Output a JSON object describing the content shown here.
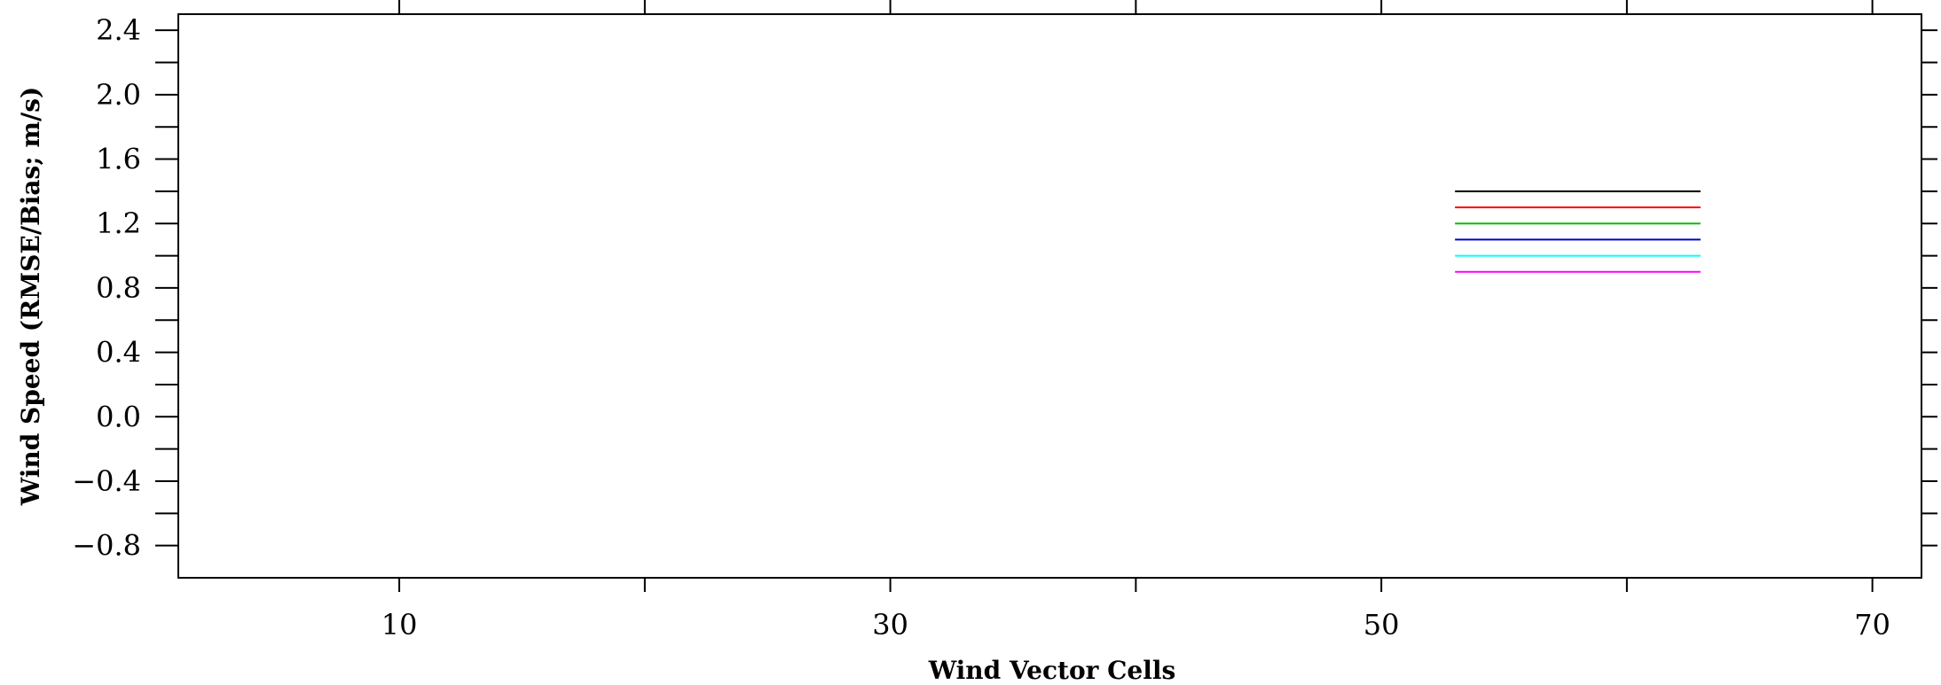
{
  "chart_data": {
    "type": "line",
    "title": "",
    "xlabel": "Wind Vector Cells",
    "ylabel": "Wind Speed (RMSE/Bias; m/s)",
    "xlim": [
      1,
      72
    ],
    "ylim": [
      -1.0,
      2.5
    ],
    "x_major_ticks": [
      10,
      30,
      50,
      70
    ],
    "x_minor_ticks": [
      20,
      40,
      60
    ],
    "x_tick_labels": [
      "10",
      "30",
      "50",
      "70"
    ],
    "y_major_ticks": [
      -0.8,
      -0.4,
      0.0,
      0.4,
      0.8,
      1.2,
      1.6,
      2.0,
      2.4
    ],
    "y_minor_ticks": [
      -0.6,
      -0.2,
      0.2,
      0.6,
      1.0,
      1.4,
      1.8,
      2.2
    ],
    "y_tick_labels": [
      "−0.8",
      "−0.4",
      "0.0",
      "0.4",
      "0.8",
      "1.2",
      "1.6",
      "2.0",
      "2.4"
    ],
    "grid": false,
    "legend": "none",
    "series": [
      {
        "color": "#000000",
        "x": [
          53,
          63
        ],
        "y": [
          1.4,
          1.4
        ]
      },
      {
        "color": "#ff0000",
        "x": [
          53,
          63
        ],
        "y": [
          1.3,
          1.3
        ]
      },
      {
        "color": "#00c000",
        "x": [
          53,
          63
        ],
        "y": [
          1.2,
          1.2
        ]
      },
      {
        "color": "#0000c8",
        "x": [
          53,
          63
        ],
        "y": [
          1.1,
          1.1
        ]
      },
      {
        "color": "#00ffff",
        "x": [
          53,
          63
        ],
        "y": [
          1.0,
          1.0
        ]
      },
      {
        "color": "#ff00ff",
        "x": [
          53,
          63
        ],
        "y": [
          0.9,
          0.9
        ]
      }
    ]
  }
}
